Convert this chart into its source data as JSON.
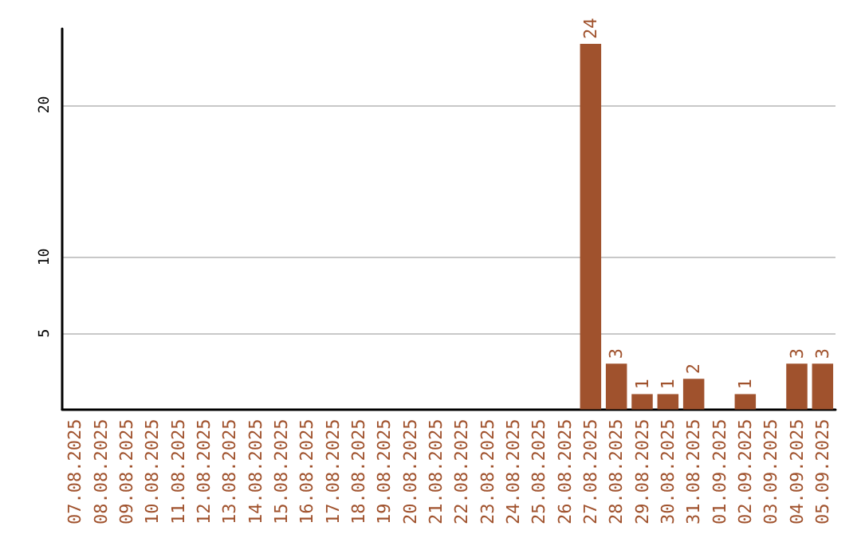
{
  "chart_data": {
    "type": "bar",
    "categories": [
      "07.08.2025",
      "08.08.2025",
      "09.08.2025",
      "10.08.2025",
      "11.08.2025",
      "12.08.2025",
      "13.08.2025",
      "14.08.2025",
      "15.08.2025",
      "16.08.2025",
      "17.08.2025",
      "18.08.2025",
      "19.08.2025",
      "20.08.2025",
      "21.08.2025",
      "22.08.2025",
      "23.08.2025",
      "24.08.2025",
      "25.08.2025",
      "26.08.2025",
      "27.08.2025",
      "28.08.2025",
      "29.08.2025",
      "30.08.2025",
      "31.08.2025",
      "01.09.2025",
      "02.09.2025",
      "03.09.2025",
      "04.09.2025",
      "05.09.2025"
    ],
    "values": [
      0,
      0,
      0,
      0,
      0,
      0,
      0,
      0,
      0,
      0,
      0,
      0,
      0,
      0,
      0,
      0,
      0,
      0,
      0,
      0,
      24,
      3,
      1,
      1,
      2,
      0,
      1,
      0,
      3,
      3
    ],
    "value_labels": [
      null,
      null,
      null,
      null,
      null,
      null,
      null,
      null,
      null,
      null,
      null,
      null,
      null,
      null,
      null,
      null,
      null,
      null,
      null,
      null,
      "24",
      "3",
      "1",
      "1",
      "2",
      null,
      "1",
      null,
      "3",
      "3"
    ],
    "color": "#a0522d",
    "ylim": [
      0,
      25
    ],
    "yticks": [
      5,
      10,
      20
    ],
    "grid": "y"
  }
}
